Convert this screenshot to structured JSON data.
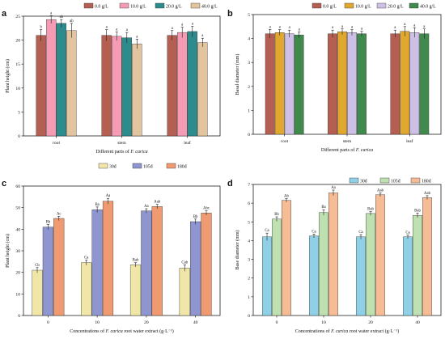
{
  "chart_data": [
    {
      "id": "a",
      "type": "bar",
      "panel_label": "a",
      "xlabel": "Different parts of F. carica",
      "ylabel": "Plant height (cm)",
      "ylim": [
        0,
        25
      ],
      "yticks": [
        0,
        5,
        10,
        15,
        20,
        25
      ],
      "categories": [
        "root",
        "stem",
        "leaf"
      ],
      "legend_position": "top-center",
      "legend_cols": 4,
      "series": [
        {
          "name": "0.0 g/L",
          "color": "#b55e52",
          "values": [
            21.0,
            21.0,
            21.0
          ],
          "errors": [
            1.2,
            1.2,
            1.0
          ],
          "labels": [
            "b",
            "a",
            "a"
          ]
        },
        {
          "name": "10.0 g/L",
          "color": "#f59bb4",
          "values": [
            24.3,
            20.8,
            21.6
          ],
          "errors": [
            0.8,
            0.9,
            1.1
          ],
          "labels": [
            "a",
            "a",
            "a"
          ]
        },
        {
          "name": "20.0 g/L",
          "color": "#2e8b8b",
          "values": [
            23.5,
            20.5,
            21.8
          ],
          "errors": [
            0.8,
            1.1,
            1.1
          ],
          "labels": [
            "ab",
            "a",
            "a"
          ]
        },
        {
          "name": "40.0 g/L",
          "color": "#e2c49e",
          "values": [
            22.0,
            19.2,
            19.5
          ],
          "errors": [
            1.5,
            1.0,
            0.9
          ],
          "labels": [
            "ab",
            "a",
            "a"
          ]
        }
      ]
    },
    {
      "id": "b",
      "type": "bar",
      "panel_label": "b",
      "xlabel": "Different parts of F. carica",
      "ylabel": "Basal diameter (mm)",
      "ylim": [
        0,
        5
      ],
      "yticks": [
        0,
        1,
        2,
        3,
        4,
        5
      ],
      "categories": [
        "root",
        "stem",
        "leaf"
      ],
      "legend_position": "top-right",
      "legend_cols": 4,
      "series": [
        {
          "name": "0.0 g/L",
          "color": "#b55e52",
          "values": [
            4.2,
            4.2,
            4.2
          ],
          "errors": [
            0.18,
            0.15,
            0.15
          ],
          "labels": [
            "a",
            "a",
            "a"
          ]
        },
        {
          "name": "10.0 g/L",
          "color": "#e0a82e",
          "values": [
            4.25,
            4.28,
            4.3
          ],
          "errors": [
            0.12,
            0.12,
            0.2
          ],
          "labels": [
            "a",
            "a",
            "a"
          ]
        },
        {
          "name": "20.0 g/L",
          "color": "#cdbfe6",
          "values": [
            4.2,
            4.25,
            4.25
          ],
          "errors": [
            0.15,
            0.12,
            0.2
          ],
          "labels": [
            "a",
            "a",
            "a"
          ]
        },
        {
          "name": "40.0 g/L",
          "color": "#3f8a4c",
          "values": [
            4.15,
            4.2,
            4.2
          ],
          "errors": [
            0.12,
            0.1,
            0.2
          ],
          "labels": [
            "a",
            "a",
            "a"
          ]
        }
      ]
    },
    {
      "id": "c",
      "type": "bar",
      "panel_label": "c",
      "xlabel": "Concentrations of F. carica root water extract (g·L⁻¹)",
      "ylabel": "Plant height (cm)",
      "ylim": [
        0,
        60
      ],
      "yticks": [
        0,
        10,
        20,
        30,
        40,
        50,
        60
      ],
      "categories": [
        "0",
        "10",
        "20",
        "40"
      ],
      "legend_position": "top-right",
      "legend_cols": 3,
      "series": [
        {
          "name": "30d",
          "color": "#f0e6a8",
          "values": [
            21.0,
            24.5,
            23.5,
            22.0
          ],
          "errors": [
            1.2,
            1.2,
            1.0,
            1.5
          ],
          "labels": [
            "Cb",
            "Ca",
            "Bab",
            "Cab"
          ]
        },
        {
          "name": "105d",
          "color": "#8f96cf",
          "values": [
            41.0,
            49.0,
            48.5,
            43.5
          ],
          "errors": [
            1.2,
            1.3,
            1.0,
            1.2
          ],
          "labels": [
            "Bb",
            "Ba",
            "Aa",
            "Bb"
          ]
        },
        {
          "name": "180d",
          "color": "#ef9a70",
          "values": [
            45.0,
            53.0,
            50.5,
            47.5
          ],
          "errors": [
            1.0,
            1.3,
            1.0,
            1.0
          ],
          "labels": [
            "Ac",
            "Aa",
            "Aab",
            "Abc"
          ]
        }
      ]
    },
    {
      "id": "d",
      "type": "bar",
      "panel_label": "d",
      "xlabel": "Concentrations of F. carica root water extract (g·L⁻¹)",
      "ylabel": "Base diameter (mm)",
      "ylim": [
        0,
        7
      ],
      "yticks": [
        0,
        1,
        2,
        3,
        4,
        5,
        6,
        7
      ],
      "categories": [
        "0",
        "10",
        "20",
        "40"
      ],
      "legend_position": "top-right",
      "legend_cols": 3,
      "series": [
        {
          "name": "30d",
          "color": "#8fd0e6",
          "values": [
            4.2,
            4.25,
            4.2,
            4.2
          ],
          "errors": [
            0.2,
            0.1,
            0.12,
            0.1
          ],
          "labels": [
            "Ca",
            "Ca",
            "Ca",
            "Ca"
          ]
        },
        {
          "name": "105d",
          "color": "#bfe0b0",
          "values": [
            5.15,
            5.5,
            5.45,
            5.35
          ],
          "errors": [
            0.12,
            0.15,
            0.1,
            0.12
          ],
          "labels": [
            "Bb",
            "Ba",
            "Bab",
            "Bab"
          ]
        },
        {
          "name": "180d",
          "color": "#f6bc95",
          "values": [
            6.15,
            6.55,
            6.45,
            6.3
          ],
          "errors": [
            0.1,
            0.15,
            0.1,
            0.1
          ],
          "labels": [
            "Ab",
            "Aa",
            "Aab",
            "Aab"
          ]
        }
      ]
    }
  ]
}
